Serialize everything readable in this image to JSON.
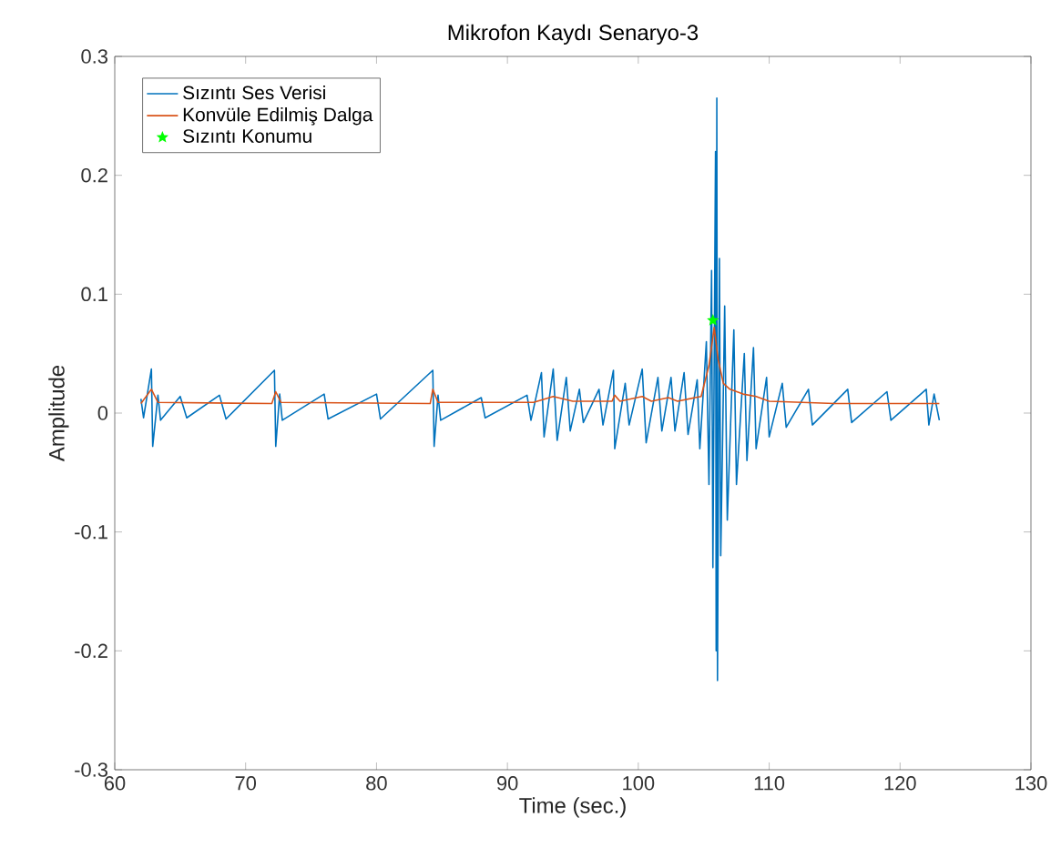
{
  "chart_data": {
    "type": "line",
    "title": "Mikrofon Kaydı Senaryo-3",
    "xlabel": "Time (sec.)",
    "ylabel": "Amplitude",
    "xlim": [
      60,
      130
    ],
    "ylim": [
      -0.3,
      0.3
    ],
    "xticks": [
      60,
      70,
      80,
      90,
      100,
      110,
      120,
      130
    ],
    "yticks": [
      -0.3,
      -0.2,
      -0.1,
      0,
      0.1,
      0.2,
      0.3
    ],
    "grid": false,
    "legend": "top left",
    "series": [
      {
        "name": "Sızıntı Ses Verisi",
        "color": "#0072bd",
        "line_style": "solid",
        "x": [
          62.0,
          62.2,
          62.8,
          62.9,
          63.3,
          63.5,
          65,
          65.5,
          68,
          68.5,
          72.2,
          72.3,
          72.6,
          72.8,
          76,
          76.3,
          80,
          80.3,
          84.3,
          84.4,
          84.7,
          84.9,
          88,
          88.3,
          91.5,
          91.8,
          92.6,
          92.8,
          93.5,
          93.8,
          94.5,
          94.8,
          95.5,
          95.8,
          97,
          97.3,
          98.1,
          98.2,
          99,
          99.3,
          100.3,
          100.6,
          101.5,
          101.8,
          102.5,
          102.8,
          103.5,
          103.8,
          104.5,
          104.7,
          105.2,
          105.4,
          105.6,
          105.7,
          105.9,
          105.95,
          106.0,
          106.05,
          106.2,
          106.3,
          106.6,
          106.8,
          107.3,
          107.5,
          108.1,
          108.3,
          108.8,
          109,
          109.8,
          110,
          111,
          111.3,
          113,
          113.3,
          116,
          116.3,
          119,
          119.3,
          122,
          122.2,
          122.6,
          123
        ],
        "values": [
          0.012,
          -0.004,
          0.037,
          -0.028,
          0.015,
          -0.006,
          0.014,
          -0.004,
          0.015,
          -0.005,
          0.036,
          -0.028,
          0.016,
          -0.006,
          0.016,
          -0.005,
          0.016,
          -0.005,
          0.036,
          -0.028,
          0.015,
          -0.006,
          0.013,
          -0.004,
          0.015,
          -0.006,
          0.034,
          -0.02,
          0.037,
          -0.023,
          0.03,
          -0.015,
          0.02,
          -0.008,
          0.02,
          -0.01,
          0.036,
          -0.03,
          0.025,
          -0.01,
          0.037,
          -0.025,
          0.03,
          -0.015,
          0.03,
          -0.015,
          0.034,
          -0.018,
          0.028,
          -0.03,
          0.06,
          -0.06,
          0.12,
          -0.13,
          0.22,
          -0.2,
          0.265,
          -0.225,
          0.13,
          -0.12,
          0.09,
          -0.09,
          0.07,
          -0.06,
          0.05,
          -0.04,
          0.055,
          -0.03,
          0.03,
          -0.02,
          0.025,
          -0.012,
          0.02,
          -0.01,
          0.02,
          -0.008,
          0.018,
          -0.006,
          0.02,
          -0.01,
          0.016,
          -0.006
        ]
      },
      {
        "name": "Konvüle Edilmiş Dalga",
        "color": "#d95319",
        "line_style": "solid",
        "x": [
          62,
          62.8,
          63.3,
          72,
          72.3,
          72.7,
          84.1,
          84.3,
          84.7,
          92,
          93.5,
          95,
          98,
          98.2,
          98.6,
          100.3,
          101,
          102.3,
          103,
          104.8,
          105.4,
          105.8,
          106.1,
          106.5,
          107,
          108,
          109,
          110,
          115,
          123
        ],
        "values": [
          0.008,
          0.02,
          0.009,
          0.008,
          0.018,
          0.009,
          0.008,
          0.02,
          0.009,
          0.009,
          0.014,
          0.01,
          0.01,
          0.015,
          0.01,
          0.014,
          0.01,
          0.013,
          0.01,
          0.014,
          0.04,
          0.072,
          0.045,
          0.025,
          0.02,
          0.016,
          0.014,
          0.01,
          0.008,
          0.008
        ]
      },
      {
        "name": "Sızıntı Konumu",
        "type": "scatter",
        "color": "#00ff00",
        "marker": "star",
        "x": [
          105.7
        ],
        "values": [
          0.078
        ]
      }
    ]
  }
}
